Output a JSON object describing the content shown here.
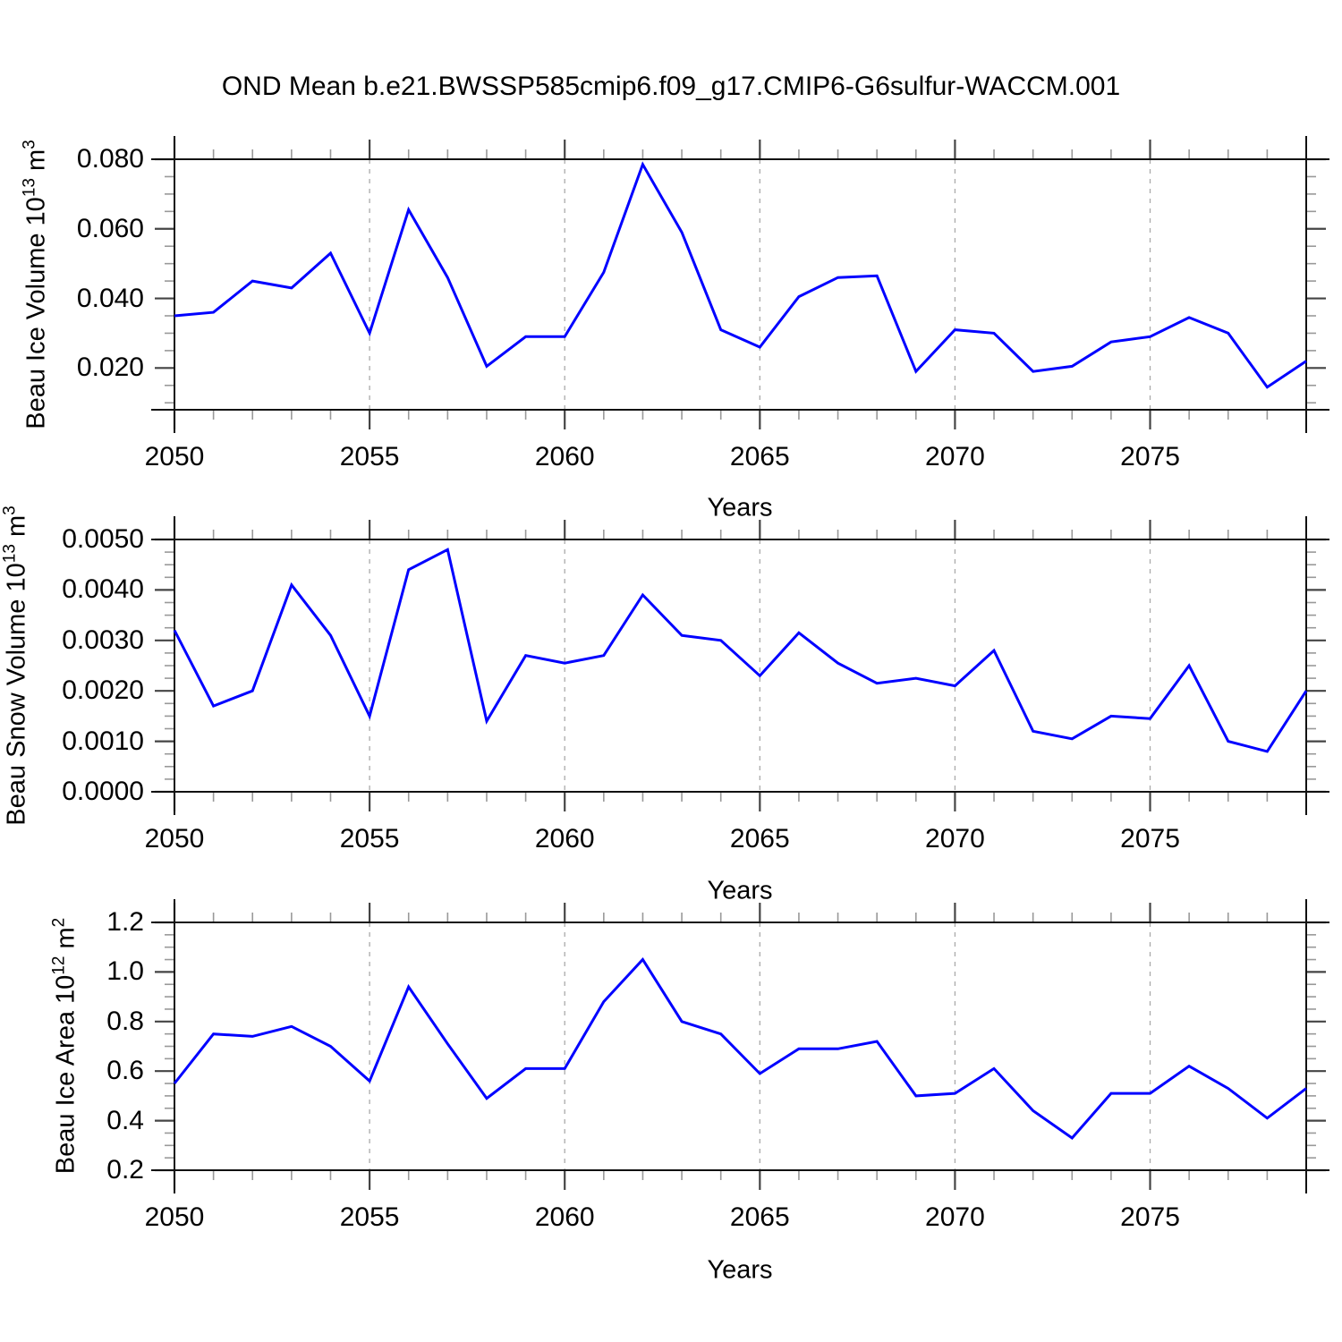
{
  "title": "OND Mean b.e21.BWSSP585cmip6.f09_g17.CMIP6-G6sulfur-WACCM.001",
  "colors": {
    "line": "#0000ff",
    "frame": "#111111",
    "major_tick": "#444444",
    "minor_tick": "#999999",
    "grid": "#aaaaaa",
    "text": "#000000"
  },
  "chart_data": [
    {
      "type": "line",
      "title": "",
      "xlabel": "Years",
      "ylabel": "Beau Ice Volume 10^13 m^3",
      "ylabel_base": "Beau Ice Volume 10",
      "ylabel_sup": "13",
      "ylabel_unit": " m",
      "ylabel_unit_sup": "3",
      "x": [
        2050,
        2051,
        2052,
        2053,
        2054,
        2055,
        2056,
        2057,
        2058,
        2059,
        2060,
        2061,
        2062,
        2063,
        2064,
        2065,
        2066,
        2067,
        2068,
        2069,
        2070,
        2071,
        2072,
        2073,
        2074,
        2075,
        2076,
        2077,
        2078,
        2079
      ],
      "values": [
        0.035,
        0.036,
        0.045,
        0.043,
        0.053,
        0.03,
        0.0655,
        0.046,
        0.0205,
        0.029,
        0.029,
        0.0475,
        0.0785,
        0.059,
        0.031,
        0.026,
        0.0405,
        0.046,
        0.0465,
        0.019,
        0.031,
        0.03,
        0.019,
        0.0205,
        0.0275,
        0.029,
        0.0345,
        0.03,
        0.0145,
        0.022
      ],
      "ylim": [
        0.008,
        0.08
      ],
      "yticks": [
        0.02,
        0.04,
        0.06,
        0.08
      ],
      "ytick_labels": [
        "0.020",
        "0.040",
        "0.060",
        "0.080"
      ],
      "y_minor_step": 0.005,
      "xlim": [
        2050,
        2079
      ],
      "x_major_ticks": [
        2050,
        2055,
        2060,
        2065,
        2070,
        2075
      ],
      "xtick_labels": [
        "2050",
        "2055",
        "2060",
        "2065",
        "2070",
        "2075"
      ],
      "x_minor_step": 1,
      "grid_x_dashed": [
        2055,
        2060,
        2065,
        2070,
        2075
      ],
      "legend": "none"
    },
    {
      "type": "line",
      "title": "",
      "xlabel": "Years",
      "ylabel": "Beau Snow Volume 10^13 m^3",
      "ylabel_base": "Beau Snow Volume 10",
      "ylabel_sup": "13",
      "ylabel_unit": " m",
      "ylabel_unit_sup": "3",
      "x": [
        2050,
        2051,
        2052,
        2053,
        2054,
        2055,
        2056,
        2057,
        2058,
        2059,
        2060,
        2061,
        2062,
        2063,
        2064,
        2065,
        2066,
        2067,
        2068,
        2069,
        2070,
        2071,
        2072,
        2073,
        2074,
        2075,
        2076,
        2077,
        2078,
        2079
      ],
      "values": [
        0.0032,
        0.0017,
        0.002,
        0.0041,
        0.0031,
        0.0015,
        0.0044,
        0.0048,
        0.0014,
        0.0027,
        0.00255,
        0.0027,
        0.0039,
        0.0031,
        0.003,
        0.0023,
        0.00315,
        0.00255,
        0.00215,
        0.00225,
        0.0021,
        0.0028,
        0.0012,
        0.00105,
        0.0015,
        0.00145,
        0.0025,
        0.001,
        0.0008,
        0.002
      ],
      "ylim": [
        0.0,
        0.005
      ],
      "yticks": [
        0.0,
        0.001,
        0.002,
        0.003,
        0.004,
        0.005
      ],
      "ytick_labels": [
        "0.0000",
        "0.0010",
        "0.0020",
        "0.0030",
        "0.0040",
        "0.0050"
      ],
      "y_minor_step": 0.00025,
      "xlim": [
        2050,
        2079
      ],
      "x_major_ticks": [
        2050,
        2055,
        2060,
        2065,
        2070,
        2075
      ],
      "xtick_labels": [
        "2050",
        "2055",
        "2060",
        "2065",
        "2070",
        "2075"
      ],
      "x_minor_step": 1,
      "grid_x_dashed": [
        2055,
        2060,
        2065,
        2070,
        2075
      ],
      "legend": "none"
    },
    {
      "type": "line",
      "title": "",
      "xlabel": "Years",
      "ylabel": "Beau Ice Area 10^12 m^2",
      "ylabel_base": "Beau Ice Area 10",
      "ylabel_sup": "12",
      "ylabel_unit": " m",
      "ylabel_unit_sup": "2",
      "x": [
        2050,
        2051,
        2052,
        2053,
        2054,
        2055,
        2056,
        2057,
        2058,
        2059,
        2060,
        2061,
        2062,
        2063,
        2064,
        2065,
        2066,
        2067,
        2068,
        2069,
        2070,
        2071,
        2072,
        2073,
        2074,
        2075,
        2076,
        2077,
        2078,
        2079
      ],
      "values": [
        0.55,
        0.75,
        0.74,
        0.78,
        0.7,
        0.56,
        0.94,
        0.71,
        0.49,
        0.61,
        0.61,
        0.88,
        1.05,
        0.8,
        0.75,
        0.59,
        0.69,
        0.69,
        0.72,
        0.5,
        0.51,
        0.61,
        0.44,
        0.33,
        0.51,
        0.51,
        0.62,
        0.53,
        0.41,
        0.53
      ],
      "ylim": [
        0.2,
        1.2
      ],
      "yticks": [
        0.2,
        0.4,
        0.6,
        0.8,
        1.0,
        1.2
      ],
      "ytick_labels": [
        "0.2",
        "0.4",
        "0.6",
        "0.8",
        "1.0",
        "1.2"
      ],
      "y_minor_step": 0.05,
      "xlim": [
        2050,
        2079
      ],
      "x_major_ticks": [
        2050,
        2055,
        2060,
        2065,
        2070,
        2075
      ],
      "xtick_labels": [
        "2050",
        "2055",
        "2060",
        "2065",
        "2070",
        "2075"
      ],
      "x_minor_step": 1,
      "grid_x_dashed": [
        2055,
        2060,
        2065,
        2070,
        2075
      ],
      "legend": "none"
    }
  ]
}
